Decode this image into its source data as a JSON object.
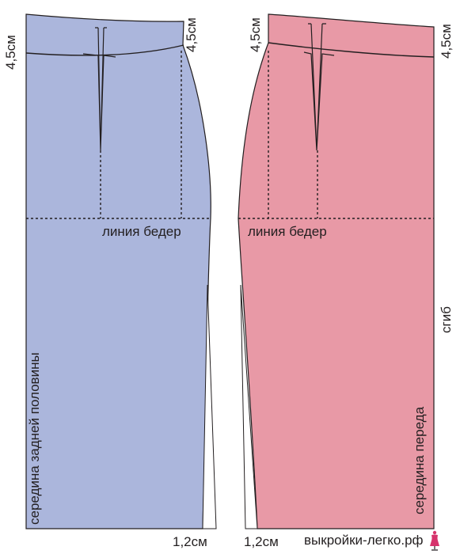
{
  "colors": {
    "back_panel": "#abb6dc",
    "front_panel": "#e899a6",
    "outline": "#231f20",
    "logo_accent": "#d6336c"
  },
  "labels": {
    "back_top_left_waist": "4,5см",
    "back_top_right_waist": "4,5см",
    "front_top_left_waist": "4,5см",
    "front_top_right_waist": "4,5см",
    "back_hip_line": "линия бедер",
    "front_hip_line": "линия бедер",
    "back_center": "середина задней половины",
    "front_center": "середина переда",
    "fold": "сгиб",
    "back_hem_offset": "1,2см",
    "front_hem_offset": "1,2см"
  },
  "watermark": {
    "text": "выкройки-легко.рф",
    "icon": "dress-form-icon"
  }
}
